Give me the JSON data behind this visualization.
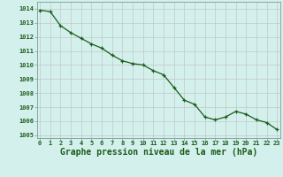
{
  "x": [
    0,
    1,
    2,
    3,
    4,
    5,
    6,
    7,
    8,
    9,
    10,
    11,
    12,
    13,
    14,
    15,
    16,
    17,
    18,
    19,
    20,
    21,
    22,
    23
  ],
  "y": [
    1013.9,
    1013.8,
    1012.8,
    1012.3,
    1011.9,
    1011.5,
    1011.2,
    1010.7,
    1010.3,
    1010.1,
    1010.0,
    1009.6,
    1009.3,
    1008.4,
    1007.5,
    1007.2,
    1006.3,
    1006.1,
    1006.3,
    1006.7,
    1006.5,
    1006.1,
    1005.9,
    1005.4
  ],
  "ylim": [
    1004.8,
    1014.5
  ],
  "xlim": [
    -0.3,
    23.3
  ],
  "yticks": [
    1005,
    1006,
    1007,
    1008,
    1009,
    1010,
    1011,
    1012,
    1013,
    1014
  ],
  "xticks": [
    0,
    1,
    2,
    3,
    4,
    5,
    6,
    7,
    8,
    9,
    10,
    11,
    12,
    13,
    14,
    15,
    16,
    17,
    18,
    19,
    20,
    21,
    22,
    23
  ],
  "xlabel": "Graphe pression niveau de la mer (hPa)",
  "line_color": "#1a5c1a",
  "marker_color": "#1a5c1a",
  "bg_color": "#d4f0ec",
  "grid_color": "#c0c8c8",
  "axis_label_color": "#1a5c1a",
  "tick_label_color": "#1a5c1a",
  "tick_label_fontsize": 5.0,
  "xlabel_fontsize": 7.0,
  "linewidth": 0.9,
  "markersize": 2.8,
  "spine_color": "#7a9a9a"
}
